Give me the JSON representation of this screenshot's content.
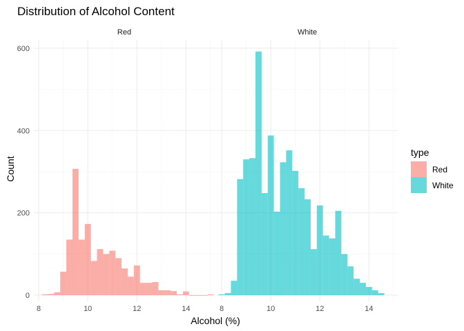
{
  "chart_data": {
    "type": "bar",
    "title": "Distribution of Alcohol Content",
    "xlabel": "Alcohol (%)",
    "ylabel": "Count",
    "xlim": [
      7.8,
      15.2
    ],
    "ylim": [
      -15,
      620
    ],
    "x_ticks": [
      8,
      10,
      12,
      14
    ],
    "y_ticks": [
      0,
      200,
      400,
      600
    ],
    "grid": true,
    "bin_width": 0.25,
    "legend": {
      "title": "type",
      "position": "right",
      "entries": [
        {
          "label": "Red",
          "color": "#F8766D"
        },
        {
          "label": "White",
          "color": "#00BFC4"
        }
      ]
    },
    "panels": [
      {
        "strip_label": "Red",
        "color": "#F8766D",
        "bins": [
          {
            "x": 8.25,
            "y": 2
          },
          {
            "x": 8.5,
            "y": 3
          },
          {
            "x": 8.75,
            "y": 7
          },
          {
            "x": 9.0,
            "y": 57
          },
          {
            "x": 9.25,
            "y": 135
          },
          {
            "x": 9.5,
            "y": 307
          },
          {
            "x": 9.75,
            "y": 135
          },
          {
            "x": 10.0,
            "y": 173
          },
          {
            "x": 10.25,
            "y": 83
          },
          {
            "x": 10.5,
            "y": 112
          },
          {
            "x": 10.75,
            "y": 100
          },
          {
            "x": 11.0,
            "y": 108
          },
          {
            "x": 11.25,
            "y": 90
          },
          {
            "x": 11.5,
            "y": 65
          },
          {
            "x": 11.75,
            "y": 45
          },
          {
            "x": 12.0,
            "y": 72
          },
          {
            "x": 12.25,
            "y": 30
          },
          {
            "x": 12.5,
            "y": 30
          },
          {
            "x": 12.75,
            "y": 32
          },
          {
            "x": 13.0,
            "y": 12
          },
          {
            "x": 13.25,
            "y": 12
          },
          {
            "x": 13.5,
            "y": 10
          },
          {
            "x": 13.75,
            "y": 2
          },
          {
            "x": 14.0,
            "y": 9
          },
          {
            "x": 14.25,
            "y": 0
          },
          {
            "x": 14.5,
            "y": 0
          },
          {
            "x": 14.75,
            "y": 0
          },
          {
            "x": 15.0,
            "y": 2
          }
        ]
      },
      {
        "strip_label": "White",
        "color": "#00BFC4",
        "bins": [
          {
            "x": 8.0,
            "y": 2
          },
          {
            "x": 8.25,
            "y": 5
          },
          {
            "x": 8.5,
            "y": 35
          },
          {
            "x": 8.75,
            "y": 282
          },
          {
            "x": 9.0,
            "y": 330
          },
          {
            "x": 9.25,
            "y": 333
          },
          {
            "x": 9.5,
            "y": 592
          },
          {
            "x": 9.75,
            "y": 248
          },
          {
            "x": 10.0,
            "y": 388
          },
          {
            "x": 10.25,
            "y": 203
          },
          {
            "x": 10.5,
            "y": 323
          },
          {
            "x": 10.75,
            "y": 352
          },
          {
            "x": 11.0,
            "y": 302
          },
          {
            "x": 11.25,
            "y": 260
          },
          {
            "x": 11.5,
            "y": 233
          },
          {
            "x": 11.75,
            "y": 112
          },
          {
            "x": 12.0,
            "y": 218
          },
          {
            "x": 12.25,
            "y": 145
          },
          {
            "x": 12.5,
            "y": 138
          },
          {
            "x": 12.75,
            "y": 205
          },
          {
            "x": 13.0,
            "y": 100
          },
          {
            "x": 13.25,
            "y": 70
          },
          {
            "x": 13.5,
            "y": 40
          },
          {
            "x": 13.75,
            "y": 30
          },
          {
            "x": 14.0,
            "y": 20
          },
          {
            "x": 14.25,
            "y": 12
          },
          {
            "x": 14.5,
            "y": 5
          }
        ]
      }
    ]
  }
}
